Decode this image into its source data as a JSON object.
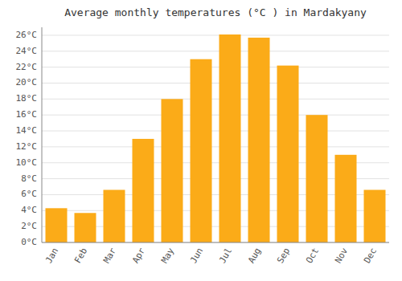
{
  "chart_data": {
    "type": "bar",
    "title": "Average monthly temperatures (°C ) in Mardakyany",
    "categories": [
      "Jan",
      "Feb",
      "Mar",
      "Apr",
      "May",
      "Jun",
      "Jul",
      "Aug",
      "Sep",
      "Oct",
      "Nov",
      "Dec"
    ],
    "values": [
      4.3,
      3.7,
      6.6,
      13.0,
      18.0,
      23.0,
      26.1,
      25.7,
      22.2,
      16.0,
      11.0,
      6.6
    ],
    "color": "#FBAB18",
    "ylim": [
      0,
      27
    ],
    "yticks": [
      {
        "value": 0,
        "label": "0°C"
      },
      {
        "value": 2,
        "label": "2°C"
      },
      {
        "value": 4,
        "label": "4°C"
      },
      {
        "value": 6,
        "label": "6°C"
      },
      {
        "value": 8,
        "label": "8°C"
      },
      {
        "value": 10,
        "label": "10°C"
      },
      {
        "value": 12,
        "label": "12°C"
      },
      {
        "value": 14,
        "label": "14°C"
      },
      {
        "value": 16,
        "label": "16°C"
      },
      {
        "value": 18,
        "label": "18°C"
      },
      {
        "value": 20,
        "label": "20°C"
      },
      {
        "value": 22,
        "label": "22°C"
      },
      {
        "value": 24,
        "label": "24°C"
      },
      {
        "value": 26,
        "label": "26°C"
      }
    ],
    "grid": true
  }
}
